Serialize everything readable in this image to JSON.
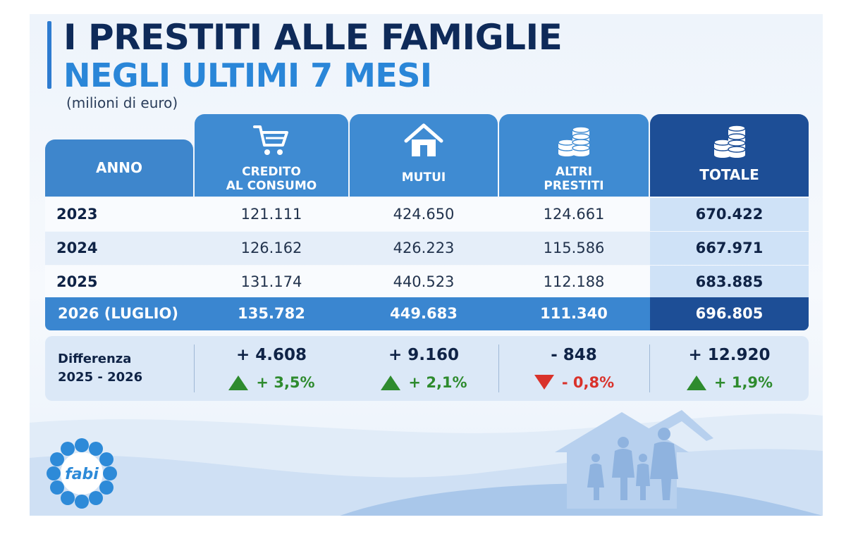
{
  "title_line1": "I PRESTITI ALLE FAMIGLIE",
  "title_line2": "NEGLI ULTIMI 7 MESI",
  "subtitle": "(milioni di euro)",
  "logo_text": "fabi",
  "colors": {
    "header_blue": "#3f8bd2",
    "total_navy": "#1d4e96",
    "up_green": "#2e8b2e",
    "down_red": "#d9322b"
  },
  "icons": {
    "credito": "shopping-cart-icon",
    "mutui": "house-icon",
    "altri": "coin-stack-icon",
    "totale": "coin-stack-icon"
  },
  "chart_data": {
    "type": "table",
    "columns": [
      {
        "line1": "ANNO",
        "line2": ""
      },
      {
        "line1": "CREDITO",
        "line2": "AL CONSUMO"
      },
      {
        "line1": "MUTUI",
        "line2": ""
      },
      {
        "line1": "ALTRI",
        "line2": "PRESTITI"
      },
      {
        "line1": "TOTALE",
        "line2": ""
      }
    ],
    "rows": [
      {
        "year": "2023",
        "values": [
          "121.111",
          "424.650",
          "124.661",
          "670.422"
        ]
      },
      {
        "year": "2024",
        "values": [
          "126.162",
          "426.223",
          "115.586",
          "667.971"
        ]
      },
      {
        "year": "2025",
        "values": [
          "131.174",
          "440.523",
          "112.188",
          "683.885"
        ]
      },
      {
        "year": "2026 (LUGLIO)",
        "values": [
          "135.782",
          "449.683",
          "111.340",
          "696.805"
        ]
      }
    ],
    "difference": {
      "label_line1": "Differenza",
      "label_line2": "2025 - 2026",
      "items": [
        {
          "abs": "+ 4.608",
          "pct": "+ 3,5%",
          "direction": "up"
        },
        {
          "abs": "+ 9.160",
          "pct": "+ 2,1%",
          "direction": "up"
        },
        {
          "abs": "- 848",
          "pct": "- 0,8%",
          "direction": "down"
        },
        {
          "abs": "+ 12.920",
          "pct": "+ 1,9%",
          "direction": "up"
        }
      ]
    }
  }
}
